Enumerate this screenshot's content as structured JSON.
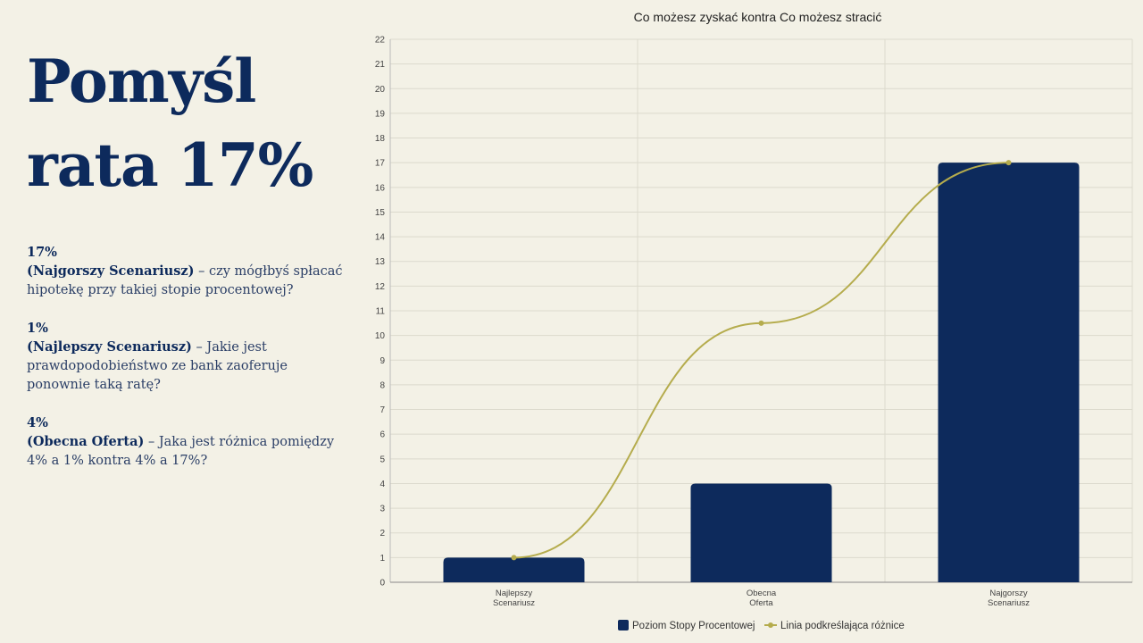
{
  "slide": {
    "title_line1": "Pomyśl",
    "title_line2": "rata 17%"
  },
  "notes": [
    {
      "pct": "17%",
      "heading": "(Najgorszy Scenariusz)",
      "text": " – czy mógłbyś spłacać hipotekę przy takiej stopie procentowej?"
    },
    {
      "pct": "1%",
      "heading": "(Najlepszy Scenariusz)",
      "text": " – Jakie jest prawdopodobieństwo ze bank zaoferuje ponownie taką ratę?"
    },
    {
      "pct": "4%",
      "heading": "(Obecna Oferta)",
      "text": " – Jaka jest różnica pomiędzy 4% a 1%  kontra 4% a 17%?"
    }
  ],
  "colors": {
    "bar": "#0d2a5c",
    "line": "#b5ac4d",
    "grid": "#dcdacd",
    "text": "#0d2a5c"
  },
  "chart_data": {
    "type": "bar",
    "title": "Co możesz zyskać kontra Co możesz stracić",
    "categories": [
      [
        "Najlepszy",
        "Scenariusz"
      ],
      [
        "Obecna",
        "Oferta"
      ],
      [
        "Najgorszy",
        "Scenariusz"
      ]
    ],
    "ylim": [
      0,
      22
    ],
    "yticks": [
      0,
      1,
      2,
      3,
      4,
      5,
      6,
      7,
      8,
      9,
      10,
      11,
      12,
      13,
      14,
      15,
      16,
      17,
      18,
      19,
      20,
      21,
      22
    ],
    "series": [
      {
        "name": "Poziom Stopy Procentowej",
        "type": "bar",
        "values": [
          1,
          4,
          17
        ]
      },
      {
        "name": "Linia podkreślająca różnice",
        "type": "line",
        "values": [
          1,
          10.5,
          17
        ]
      }
    ],
    "legend": "bottom"
  }
}
